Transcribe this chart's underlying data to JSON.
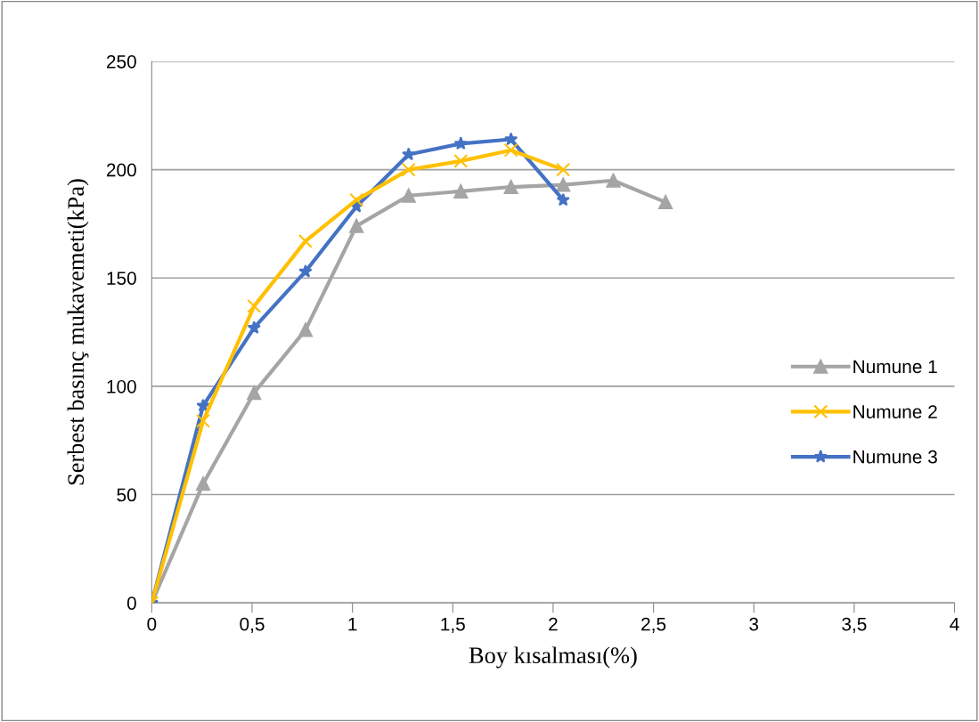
{
  "chart_data": {
    "type": "line",
    "xlabel": "Boy kısalması(%)",
    "ylabel": "Serbest basınç mukavemeti(kPa)",
    "xlim": [
      0,
      4
    ],
    "xticks": [
      {
        "value": 0,
        "label": "0"
      },
      {
        "value": 0.5,
        "label": "0,5"
      },
      {
        "value": 1,
        "label": "1"
      },
      {
        "value": 1.5,
        "label": "1,5"
      },
      {
        "value": 2,
        "label": "2"
      },
      {
        "value": 2.5,
        "label": "2,5"
      },
      {
        "value": 3,
        "label": "3"
      },
      {
        "value": 3.5,
        "label": "3,5"
      },
      {
        "value": 4,
        "label": "4"
      }
    ],
    "ylim": [
      0,
      250
    ],
    "yticks": [
      0,
      50,
      100,
      150,
      200,
      250
    ],
    "grid": "y",
    "legend": "right",
    "series": [
      {
        "name": "Numune 1",
        "color": "#a5a5a5",
        "marker": "triangle",
        "x": [
          0,
          0.256,
          0.51,
          0.766,
          1.02,
          1.28,
          1.54,
          1.79,
          2.05,
          2.3,
          2.56
        ],
        "values": [
          0,
          55,
          97,
          126,
          174,
          188,
          190,
          192,
          193,
          195,
          185
        ]
      },
      {
        "name": "Numune 2",
        "color": "#ffc000",
        "marker": "cross",
        "x": [
          0,
          0.256,
          0.51,
          0.766,
          1.02,
          1.28,
          1.54,
          1.79,
          2.05
        ],
        "values": [
          0,
          84,
          137,
          167,
          186,
          200,
          204,
          209,
          200
        ]
      },
      {
        "name": "Numune 3",
        "color": "#4472c4",
        "marker": "star",
        "x": [
          0,
          0.256,
          0.51,
          0.766,
          1.02,
          1.28,
          1.54,
          1.79,
          2.05
        ],
        "values": [
          0,
          91,
          127,
          153,
          183,
          207,
          212,
          214,
          186
        ]
      }
    ]
  }
}
